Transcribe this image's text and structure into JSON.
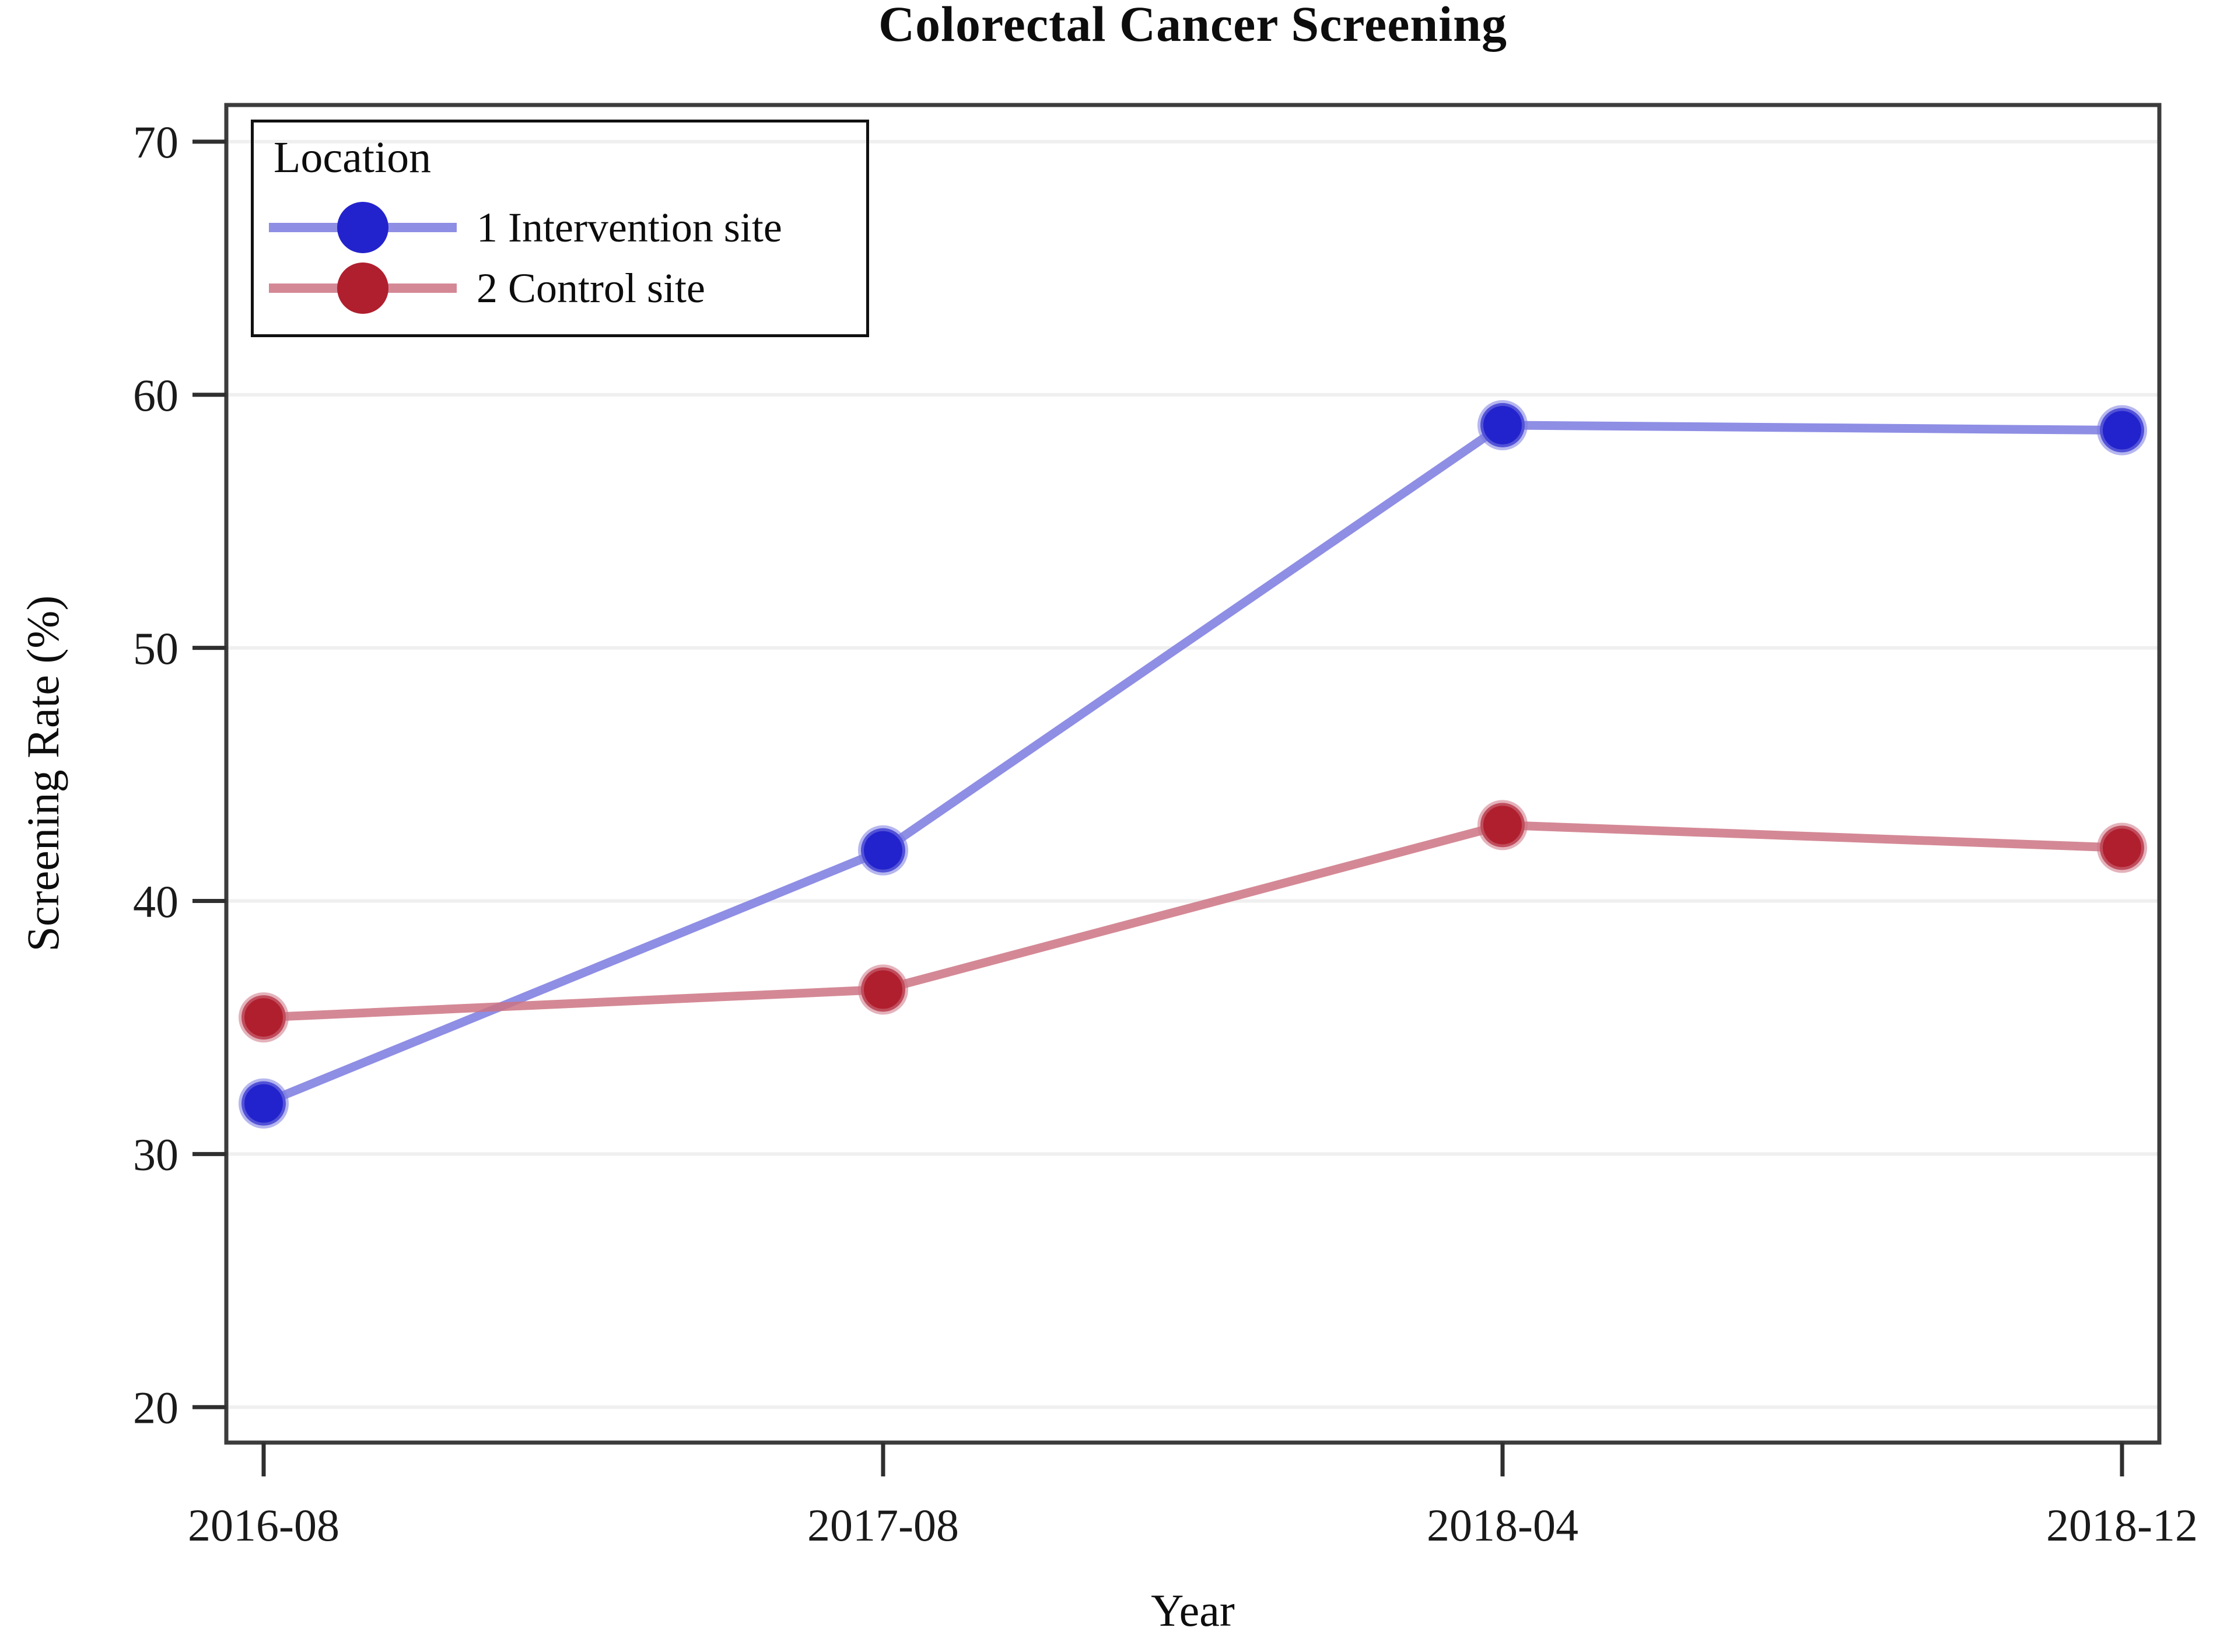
{
  "chart_data": {
    "type": "line",
    "title": "Colorectal Cancer Screening",
    "xlabel": "Year",
    "ylabel": "Screening Rate (%)",
    "categories": [
      "2016-08",
      "2017-08",
      "2018-04",
      "2018-12"
    ],
    "yticks": [
      20,
      30,
      40,
      50,
      60,
      70
    ],
    "ylim": [
      18.6,
      71.45
    ],
    "grid": "horizontal-light",
    "legend": {
      "title": "Location",
      "position": "top-left-inside"
    },
    "series": [
      {
        "name": "1 Intervention site",
        "marker_color": "#2323cd",
        "line_color": "#7a7ae1",
        "values": [
          32.0,
          42.0,
          58.8,
          58.6
        ]
      },
      {
        "name": "2 Control site",
        "marker_color": "#b01f2e",
        "line_color": "#cd7383",
        "values": [
          35.4,
          36.5,
          43.0,
          42.1
        ]
      }
    ],
    "axis_color": "#2f2f2f",
    "gridline_color": "#efefef"
  }
}
